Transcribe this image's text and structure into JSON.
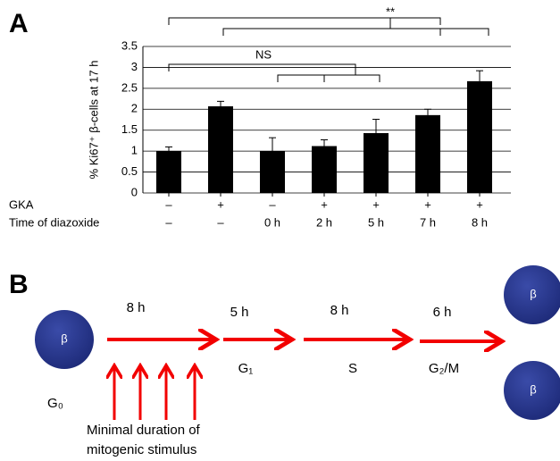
{
  "panel_labels": [
    "A",
    "B"
  ],
  "chart_data": {
    "type": "bar",
    "y_label": "% Ki67⁺ β-cells at 17 h",
    "values": [
      1.0,
      2.07,
      1.0,
      1.12,
      1.43,
      1.86,
      2.67
    ],
    "errors": [
      0.1,
      0.12,
      0.32,
      0.15,
      0.33,
      0.14,
      0.25
    ],
    "color": "#000000",
    "ylim": [
      0,
      3.5
    ],
    "yticks": [
      0,
      0.5,
      1,
      1.5,
      2,
      2.5,
      3,
      3.5
    ],
    "grid": true,
    "rows": [
      {
        "name": "GKA",
        "values": [
          "–",
          "+",
          "–",
          "+",
          "+",
          "+",
          "+"
        ]
      },
      {
        "name": "Time of diazoxide",
        "values": [
          "–",
          "–",
          "0 h",
          "2 h",
          "5 h",
          "7 h",
          "8 h"
        ]
      }
    ],
    "annotations": [
      "**",
      "NS"
    ]
  },
  "diagram": {
    "cells": [
      "β",
      "β",
      "β"
    ],
    "durations": [
      "8 h",
      "5 h",
      "8 h",
      "6 h"
    ],
    "phases": [
      "G₁",
      "S",
      "G₂/M"
    ],
    "start_phase": "G₀",
    "stimulus": [
      "Minimal duration of",
      "mitogenic stimulus"
    ]
  }
}
